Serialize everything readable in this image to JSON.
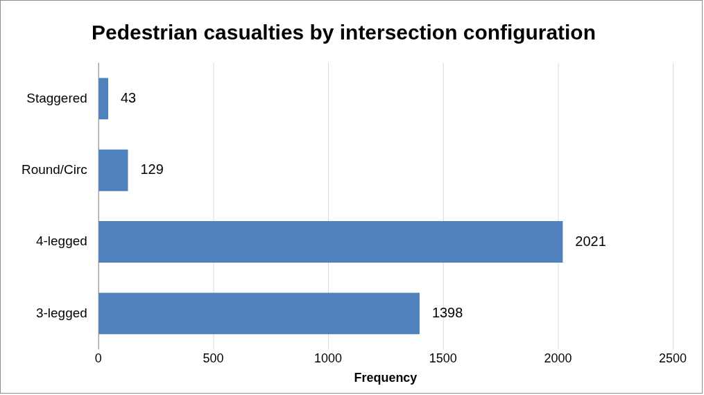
{
  "chart_data": {
    "type": "bar",
    "orientation": "horizontal",
    "title": "Pedestrian casualties by intersection configuration",
    "xlabel": "Frequency",
    "categories": [
      "Staggered",
      "Round/Circ",
      "4-legged",
      "3-legged"
    ],
    "values": [
      43,
      129,
      2021,
      1398
    ],
    "color": "#4f81bd",
    "xlim": [
      0,
      2500
    ],
    "xticks": [
      0,
      500,
      1000,
      1500,
      2000,
      2500
    ],
    "grid": "x",
    "legend": false,
    "data_labels": true
  }
}
